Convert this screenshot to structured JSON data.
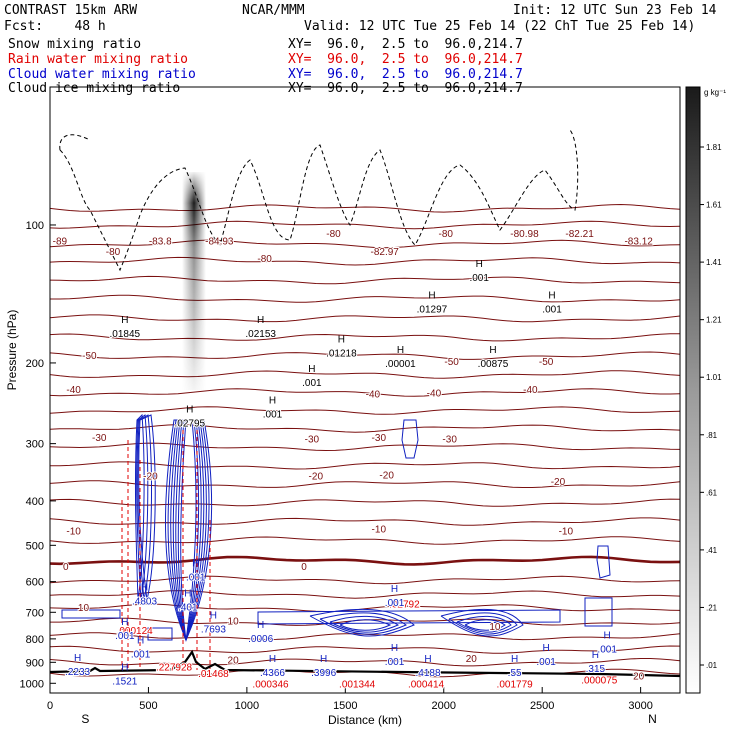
{
  "header": {
    "model": "CONTRAST 15km ARW",
    "forecast": "Fcst:    48 h",
    "center": "NCAR/MMM",
    "init": "Init: 12 UTC Sun 23 Feb 14",
    "valid": "Valid: 12 UTC Tue 25 Feb 14 (22 ChT Tue 25 Feb 14)",
    "fields": [
      {
        "name": "Snow mixing ratio",
        "xy": "XY=  96.0,  2.5 to  96.0,214.7",
        "color": "#000000"
      },
      {
        "name": "Rain water mixing ratio",
        "xy": "XY=  96.0,  2.5 to  96.0,214.7",
        "color": "#e00000"
      },
      {
        "name": "Cloud water mixing ratio",
        "xy": "XY=  96.0,  2.5 to  96.0,214.7",
        "color": "#0000cc"
      },
      {
        "name": "Cloud ice mixing ratio",
        "xy": "XY=  96.0,  2.5 to  96.0,214.7",
        "color": "#000000"
      }
    ]
  },
  "chart_data": {
    "type": "cross-section",
    "xlabel": "Distance (km)",
    "ylabel": "Pressure (hPa)",
    "xlim": [
      0,
      3200
    ],
    "ylim": [
      1050,
      50
    ],
    "y_scale": "log",
    "x_ticks": [
      0,
      500,
      1000,
      1500,
      2000,
      2500,
      3000
    ],
    "y_ticks": [
      100,
      200,
      300,
      400,
      500,
      600,
      700,
      800,
      900,
      1000
    ],
    "endpoints": {
      "left": "S",
      "right": "N"
    },
    "colorbar": {
      "unit": "g kg⁻¹",
      "ticks": [
        "1.81",
        "1.61",
        "1.41",
        "1.21",
        "1.01",
        ".81",
        ".61",
        ".41",
        ".21",
        ".01"
      ]
    },
    "temperature_labels": [
      {
        "text": "-89",
        "x": 50,
        "p": 108
      },
      {
        "text": "-80",
        "x": 320,
        "p": 114
      },
      {
        "text": "-83.8",
        "x": 560,
        "p": 108
      },
      {
        "text": "-84.93",
        "x": 860,
        "p": 108
      },
      {
        "text": "-80",
        "x": 1090,
        "p": 118
      },
      {
        "text": "-80",
        "x": 1440,
        "p": 104
      },
      {
        "text": "-82.97",
        "x": 1700,
        "p": 114
      },
      {
        "text": "-80",
        "x": 2010,
        "p": 104
      },
      {
        "text": "-80.98",
        "x": 2410,
        "p": 104
      },
      {
        "text": "-82.21",
        "x": 2690,
        "p": 104
      },
      {
        "text": "-83.12",
        "x": 2990,
        "p": 108
      },
      {
        "text": "-50",
        "x": 200,
        "p": 192
      },
      {
        "text": "-40",
        "x": 120,
        "p": 228
      },
      {
        "text": "-30",
        "x": 250,
        "p": 290
      },
      {
        "text": "-30",
        "x": 1330,
        "p": 292
      },
      {
        "text": "-30",
        "x": 1670,
        "p": 290
      },
      {
        "text": "-30",
        "x": 2030,
        "p": 292
      },
      {
        "text": "-40",
        "x": 1640,
        "p": 233
      },
      {
        "text": "-40",
        "x": 1950,
        "p": 232
      },
      {
        "text": "-40",
        "x": 2440,
        "p": 228
      },
      {
        "text": "-50",
        "x": 2040,
        "p": 198
      },
      {
        "text": "-50",
        "x": 2520,
        "p": 198
      },
      {
        "text": "-20",
        "x": 1350,
        "p": 352
      },
      {
        "text": "-20",
        "x": 1710,
        "p": 350
      },
      {
        "text": "-20",
        "x": 2580,
        "p": 362
      },
      {
        "text": "-20",
        "x": 510,
        "p": 352
      },
      {
        "text": "-10",
        "x": 120,
        "p": 464
      },
      {
        "text": "-10",
        "x": 1670,
        "p": 460
      },
      {
        "text": "-10",
        "x": 2620,
        "p": 464
      },
      {
        "text": "0",
        "x": 80,
        "p": 555
      },
      {
        "text": "0",
        "x": 1290,
        "p": 555
      },
      {
        "text": "10",
        "x": 170,
        "p": 682
      },
      {
        "text": "10",
        "x": 930,
        "p": 730
      },
      {
        "text": "10",
        "x": 2260,
        "p": 750
      },
      {
        "text": "20",
        "x": 930,
        "p": 888
      },
      {
        "text": "20",
        "x": 2140,
        "p": 880
      },
      {
        "text": "20",
        "x": 2990,
        "p": 962
      }
    ],
    "snow_max_labels": [
      {
        "text": ".01845",
        "x": 380,
        "p": 172
      },
      {
        "text": ".02795",
        "x": 710,
        "p": 270
      },
      {
        "text": ".02153",
        "x": 1070,
        "p": 172
      },
      {
        "text": ".01218",
        "x": 1480,
        "p": 190
      },
      {
        "text": ".00001",
        "x": 1780,
        "p": 200
      },
      {
        "text": ".01297",
        "x": 1940,
        "p": 152
      },
      {
        "text": ".00875",
        "x": 2250,
        "p": 200
      },
      {
        "text": ".001",
        "x": 2180,
        "p": 130
      },
      {
        "text": ".001",
        "x": 2550,
        "p": 152
      },
      {
        "text": ".001",
        "x": 1130,
        "p": 258
      },
      {
        "text": ".001",
        "x": 1330,
        "p": 220
      }
    ],
    "rain_max_labels": [
      {
        "text": ".000124",
        "x": 430,
        "p": 765
      },
      {
        "text": ".227928",
        "x": 630,
        "p": 918
      },
      {
        "text": ".01468",
        "x": 830,
        "p": 950
      },
      {
        "text": ".000346",
        "x": 1120,
        "p": 1002
      },
      {
        "text": ".001344",
        "x": 1560,
        "p": 1002
      },
      {
        "text": ".000414",
        "x": 1910,
        "p": 1002
      },
      {
        "text": ".001779",
        "x": 2360,
        "p": 1002
      },
      {
        "text": ".000075",
        "x": 2790,
        "p": 980
      },
      {
        "text": ".02792",
        "x": 1800,
        "p": 670
      }
    ],
    "cloud_water_max_labels": [
      {
        "text": ".4803",
        "x": 480,
        "p": 660
      },
      {
        "text": ".7693",
        "x": 830,
        "p": 760
      },
      {
        "text": ".401",
        "x": 700,
        "p": 680
      },
      {
        "text": ".001",
        "x": 740,
        "p": 585
      },
      {
        "text": ".001",
        "x": 460,
        "p": 860
      },
      {
        "text": ".001",
        "x": 380,
        "p": 785
      },
      {
        "text": ".0006",
        "x": 1070,
        "p": 797
      },
      {
        "text": ".2233",
        "x": 140,
        "p": 940
      },
      {
        "text": ".1521",
        "x": 380,
        "p": 985
      },
      {
        "text": ".4366",
        "x": 1130,
        "p": 945
      },
      {
        "text": ".3996",
        "x": 1390,
        "p": 945
      },
      {
        "text": ".4188",
        "x": 1920,
        "p": 945
      },
      {
        "text": ".55",
        "x": 2360,
        "p": 945
      },
      {
        "text": ".315",
        "x": 2770,
        "p": 925
      },
      {
        "text": ".001",
        "x": 1750,
        "p": 895
      },
      {
        "text": ".001",
        "x": 2520,
        "p": 895
      },
      {
        "text": ".001",
        "x": 2830,
        "p": 840
      },
      {
        "text": ".001",
        "x": 1750,
        "p": 665
      }
    ]
  }
}
